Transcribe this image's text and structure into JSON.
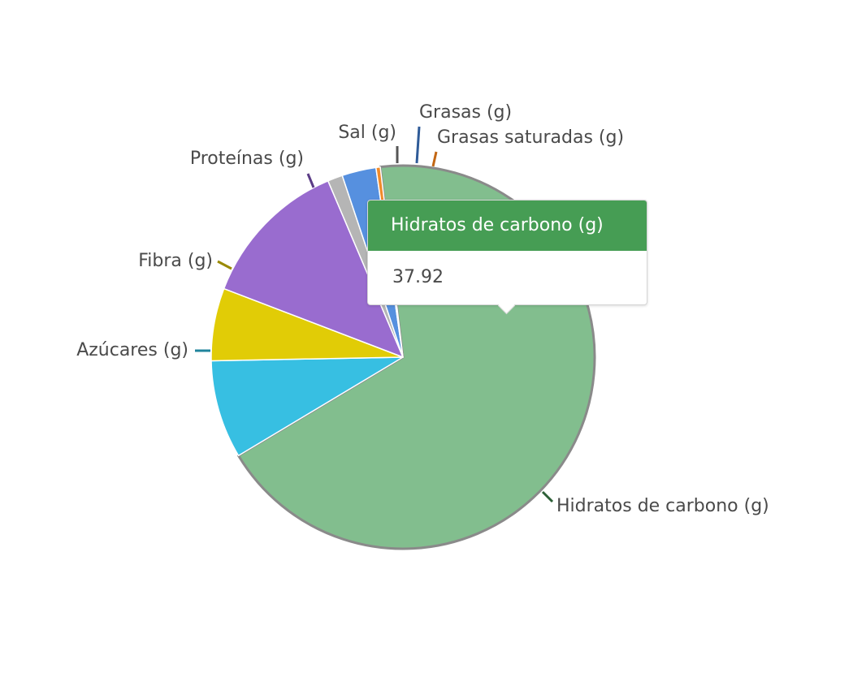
{
  "chart_data": {
    "type": "pie",
    "slices": [
      {
        "label": "Hidratos de carbono (g)",
        "value": 37.92,
        "color": "#82be8e",
        "leader": "#2c5f37",
        "highlighted": true
      },
      {
        "label": "Azúcares (g)",
        "value": 4.6,
        "color": "#37bfe2",
        "leader": "#20849c"
      },
      {
        "label": "Fibra (g)",
        "value": 3.4,
        "color": "#e1cc06",
        "leader": "#9a8a05"
      },
      {
        "label": "Proteínas (g)",
        "value": 7.1,
        "color": "#996ccf",
        "leader": "#5b3c86"
      },
      {
        "label": "Sal (g)",
        "value": 0.7,
        "color": "#b5b5b5",
        "leader": "#555555"
      },
      {
        "label": "Grasas (g)",
        "value": 1.6,
        "color": "#5690df",
        "leader": "#2f5b98"
      },
      {
        "label": "Grasas saturadas (g)",
        "value": 0.2,
        "color": "#f08a2a",
        "leader": "#c36714"
      }
    ]
  },
  "tooltip": {
    "title": "Hidratos de carbono (g)",
    "value": "37.92",
    "header_color": "#469d54"
  }
}
